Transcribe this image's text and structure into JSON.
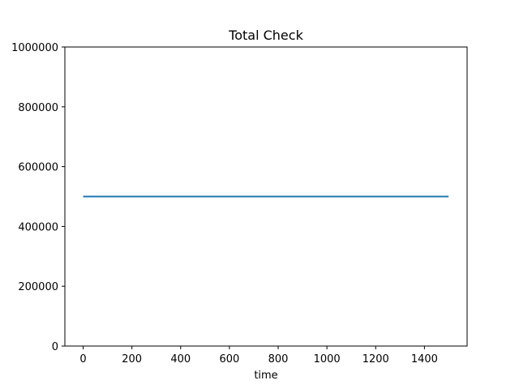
{
  "chart_data": {
    "type": "line",
    "title": "Total Check",
    "xlabel": "time",
    "ylabel": "",
    "xlim": [
      -75,
      1575
    ],
    "ylim": [
      0,
      1000000
    ],
    "xticks": [
      0,
      200,
      400,
      600,
      800,
      1000,
      1200,
      1400
    ],
    "yticks": [
      0,
      200000,
      400000,
      600000,
      800000,
      1000000
    ],
    "grid": false,
    "series": [
      {
        "color": "#1f77b4",
        "x": [
          0,
          1499
        ],
        "y": [
          500000,
          500000
        ]
      }
    ]
  }
}
